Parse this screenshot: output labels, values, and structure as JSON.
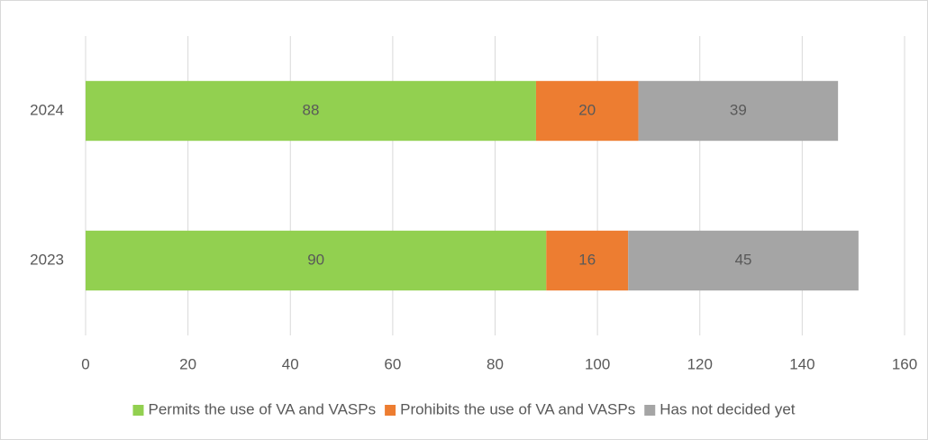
{
  "chart_data": {
    "type": "stacked_bar_horizontal",
    "categories": [
      "2023",
      "2024"
    ],
    "series": [
      {
        "name": "Permits the use of VA and VASPs",
        "color": "#92d050",
        "values": [
          90,
          88
        ]
      },
      {
        "name": "Prohibits the use of VA and VASPs",
        "color": "#ed7d31",
        "values": [
          16,
          20
        ]
      },
      {
        "name": "Has not decided yet",
        "color": "#a5a5a5",
        "values": [
          45,
          39
        ]
      }
    ],
    "xlim": [
      0,
      160
    ],
    "xticks": [
      0,
      20,
      40,
      60,
      80,
      100,
      120,
      140,
      160
    ],
    "grid": true,
    "legend": "bottom"
  }
}
